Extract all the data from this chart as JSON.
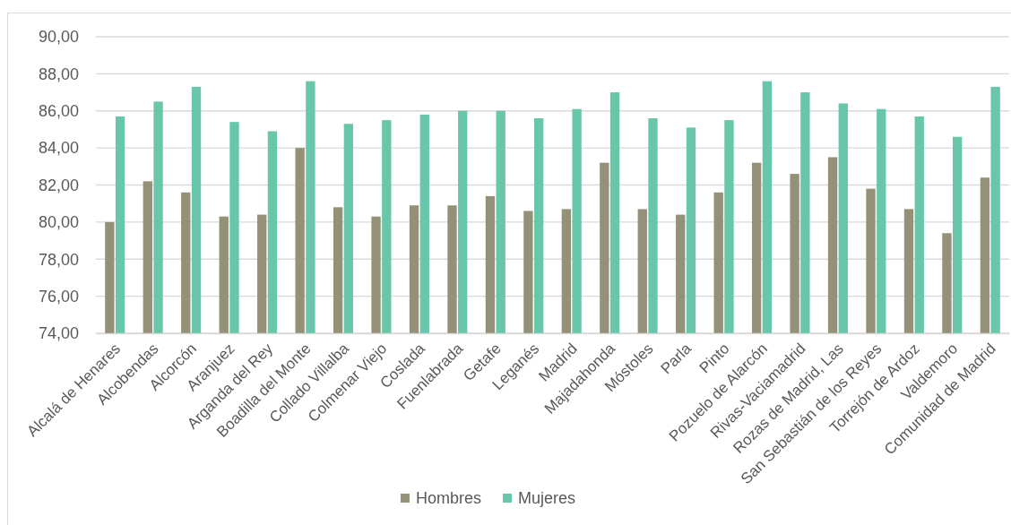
{
  "chart_data": {
    "type": "bar",
    "categories": [
      "Alcalá de Henares",
      "Alcobendas",
      "Alcorcón",
      "Aranjuez",
      "Arganda del Rey",
      "Boadilla del Monte",
      "Collado Villalba",
      "Colmenar Viejo",
      "Coslada",
      "Fuenlabrada",
      "Getafe",
      "Leganés",
      "Madrid",
      "Majadahonda",
      "Móstoles",
      "Parla",
      "Pinto",
      "Pozuelo de Alarcón",
      "Rivas-Vaciamadrid",
      "Rozas de Madrid, Las",
      "San Sebastián de los Reyes",
      "Torrejón de Ardoz",
      "Valdemoro",
      "Comunidad de Madrid"
    ],
    "series": [
      {
        "name": "Hombres",
        "color": "#949178",
        "values": [
          80.0,
          82.2,
          81.6,
          80.3,
          80.4,
          84.0,
          80.8,
          80.3,
          80.9,
          80.9,
          81.4,
          80.6,
          80.7,
          83.2,
          80.7,
          80.4,
          81.6,
          83.2,
          82.6,
          83.5,
          81.8,
          80.7,
          79.4,
          82.4
        ]
      },
      {
        "name": "Mujeres",
        "color": "#68c6aa",
        "values": [
          85.7,
          86.5,
          87.3,
          85.4,
          84.9,
          87.6,
          85.3,
          85.5,
          85.8,
          86.0,
          86.0,
          85.6,
          86.1,
          87.0,
          85.6,
          85.1,
          85.5,
          87.6,
          87.0,
          86.4,
          86.1,
          85.7,
          84.6,
          87.3
        ]
      }
    ],
    "ylim": [
      74,
      90
    ],
    "yticks": [
      {
        "value": 74,
        "label": "74,00"
      },
      {
        "value": 76,
        "label": "76,00"
      },
      {
        "value": 78,
        "label": "78,00"
      },
      {
        "value": 80,
        "label": "80,00"
      },
      {
        "value": 82,
        "label": "82,00"
      },
      {
        "value": 84,
        "label": "84,00"
      },
      {
        "value": 86,
        "label": "86,00"
      },
      {
        "value": 88,
        "label": "88,00"
      },
      {
        "value": 90,
        "label": "90,00"
      }
    ],
    "grid": "y",
    "legend": "bottom"
  }
}
